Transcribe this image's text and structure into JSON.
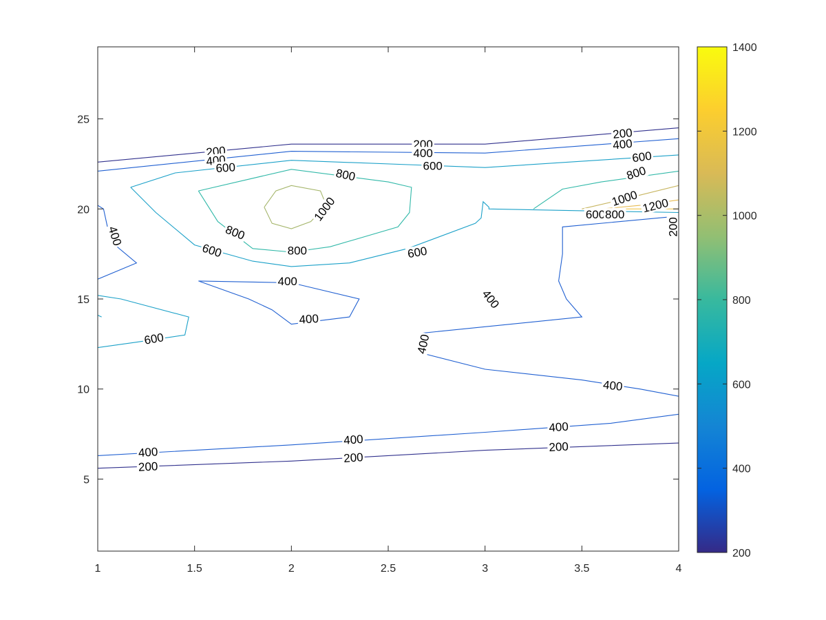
{
  "chart_data": {
    "type": "contour",
    "xlim": [
      1,
      4
    ],
    "ylim": [
      1,
      29
    ],
    "x_ticks": [
      "1",
      "1.5",
      "2",
      "2.5",
      "3",
      "3.5",
      "4"
    ],
    "y_ticks": [
      "5",
      "10",
      "15",
      "20",
      "25"
    ],
    "x_tick_values": [
      1,
      1.5,
      2,
      2.5,
      3,
      3.5,
      4
    ],
    "y_tick_values": [
      5,
      10,
      15,
      20,
      25
    ],
    "grid": false,
    "colorbar": {
      "placement": "right",
      "range": [
        200,
        1400
      ],
      "tick_values": [
        200,
        400,
        600,
        800,
        1000,
        1200,
        1400
      ],
      "tick_labels": [
        "200",
        "400",
        "600",
        "800",
        "1000",
        "1200",
        "1400"
      ],
      "colors": [
        "#352a87",
        "#0363e1",
        "#1485d4",
        "#06a7c6",
        "#38b99e",
        "#92bf73",
        "#d9ba56",
        "#fcce2e",
        "#f9fb0e"
      ]
    },
    "contours": [
      {
        "level": 200,
        "color": "#2f2f8c",
        "points": [
          [
            1,
            22.6
          ],
          [
            2,
            23.6
          ],
          [
            3,
            23.6
          ],
          [
            4,
            24.5
          ]
        ]
      },
      {
        "level": 400,
        "color": "#1f5fd1",
        "points": [
          [
            1,
            22.1
          ],
          [
            2,
            23.2
          ],
          [
            3,
            23.1
          ],
          [
            4,
            23.9
          ]
        ]
      },
      {
        "level": 600,
        "color": "#1aa0c8",
        "points": [
          [
            1.17,
            21.2
          ],
          [
            1.4,
            22.0
          ],
          [
            2,
            22.7
          ],
          [
            3,
            22.3
          ],
          [
            4,
            23.0
          ]
        ]
      },
      {
        "level": 600,
        "color": "#1aa0c8",
        "points": [
          [
            1.17,
            21.2
          ],
          [
            1.3,
            19.8
          ],
          [
            1.5,
            18.0
          ],
          [
            1.8,
            17.1
          ],
          [
            2,
            16.8
          ],
          [
            2.3,
            17.0
          ],
          [
            2.6,
            17.8
          ],
          [
            2.95,
            19.2
          ],
          [
            2.98,
            19.5
          ],
          [
            2.99,
            20.4
          ],
          [
            3.02,
            20.1
          ],
          [
            3.02,
            20.0
          ],
          [
            3.5,
            19.9
          ],
          [
            4,
            19.8
          ]
        ]
      },
      {
        "level": 800,
        "color": "#30b8a8",
        "points": [
          [
            1.52,
            21.0
          ],
          [
            2,
            22.2
          ],
          [
            2.5,
            21.5
          ],
          [
            2.62,
            21.2
          ],
          [
            2.61,
            19.8
          ],
          [
            2.55,
            19.0
          ],
          [
            2.2,
            17.9
          ],
          [
            2,
            17.6
          ],
          [
            1.8,
            17.8
          ],
          [
            1.62,
            19.3
          ],
          [
            1.52,
            21.0
          ]
        ]
      },
      {
        "level": 800,
        "color": "#30b8a8",
        "points": [
          [
            3.25,
            20.0
          ],
          [
            3.4,
            21.1
          ],
          [
            3.6,
            21.5
          ],
          [
            4,
            22.1
          ]
        ]
      },
      {
        "level": 1000,
        "color": "#a4b56a",
        "points": [
          [
            1.86,
            20.1
          ],
          [
            1.92,
            21.0
          ],
          [
            2,
            21.3
          ],
          [
            2.15,
            21.0
          ],
          [
            2.18,
            20.2
          ],
          [
            2.1,
            19.3
          ],
          [
            2,
            18.9
          ],
          [
            1.9,
            19.2
          ],
          [
            1.86,
            20.1
          ]
        ]
      },
      {
        "level": 1000,
        "color": "#c7b55f",
        "points": [
          [
            3.5,
            20.0
          ],
          [
            3.7,
            20.5
          ],
          [
            4,
            21.3
          ]
        ]
      },
      {
        "level": 1200,
        "color": "#e7ba4f",
        "points": [
          [
            3.6,
            20.0
          ],
          [
            3.8,
            20.2
          ],
          [
            4,
            20.5
          ]
        ]
      },
      {
        "level": 1200,
        "color": "#f1c64a",
        "points": [
          [
            3.7,
            20.0
          ],
          [
            4,
            20.0
          ]
        ]
      },
      {
        "level": 200,
        "color": "#2f2f8c",
        "points": [
          [
            3.96,
            19.3
          ],
          [
            3.97,
            18.8
          ],
          [
            4,
            18.5
          ]
        ]
      },
      {
        "level": 400,
        "color": "#1f5fd1",
        "points": [
          [
            4,
            19.6
          ],
          [
            3.4,
            19.0
          ],
          [
            3.4,
            17.5
          ],
          [
            3.38,
            16.0
          ],
          [
            3.42,
            15.0
          ],
          [
            3.5,
            14.0
          ],
          [
            2.67,
            13.1
          ]
        ]
      },
      {
        "level": 400,
        "color": "#1f5fd1",
        "points": [
          [
            2.67,
            12.0
          ],
          [
            3,
            11.1
          ],
          [
            3.5,
            10.5
          ],
          [
            3.8,
            10.0
          ],
          [
            4,
            9.6
          ]
        ]
      },
      {
        "level": 400,
        "color": "#1f5fd1",
        "points": [
          [
            1,
            20.2
          ],
          [
            1.03,
            20.0
          ],
          [
            1.05,
            19.0
          ],
          [
            1.1,
            17.9
          ],
          [
            1.2,
            17.0
          ],
          [
            1,
            16.1
          ]
        ]
      },
      {
        "level": 400,
        "color": "#1f5fd1",
        "points": [
          [
            1.52,
            16.0
          ],
          [
            2,
            15.9
          ],
          [
            2.35,
            15.0
          ],
          [
            2.3,
            14.0
          ],
          [
            2,
            13.6
          ],
          [
            1.9,
            14.4
          ],
          [
            1.78,
            15.0
          ],
          [
            1.52,
            16.0
          ]
        ]
      },
      {
        "level": 600,
        "color": "#1aa0c8",
        "points": [
          [
            1,
            15.2
          ],
          [
            1.12,
            15.0
          ],
          [
            1.47,
            14.0
          ],
          [
            1.45,
            13.0
          ],
          [
            1.2,
            12.6
          ],
          [
            1,
            12.3
          ]
        ]
      },
      {
        "level": 600,
        "color": "#1aa0c8",
        "points": [
          [
            1,
            14.1
          ],
          [
            1.02,
            14.0
          ]
        ]
      },
      {
        "level": 400,
        "color": "#1f5fd1",
        "points": [
          [
            1,
            6.3
          ],
          [
            2,
            6.9
          ],
          [
            3,
            7.6
          ],
          [
            3.65,
            8.1
          ],
          [
            4,
            8.6
          ]
        ]
      },
      {
        "level": 200,
        "color": "#2f2f8c",
        "points": [
          [
            1,
            5.6
          ],
          [
            2,
            6.0
          ],
          [
            3,
            6.6
          ],
          [
            4,
            7.0
          ]
        ]
      }
    ],
    "contour_labels": [
      {
        "text": "200",
        "x": 1.61,
        "y": 23.2,
        "angle": -6
      },
      {
        "text": "400",
        "x": 1.61,
        "y": 22.7,
        "angle": -6
      },
      {
        "text": "600",
        "x": 1.66,
        "y": 22.3,
        "angle": -4
      },
      {
        "text": "800",
        "x": 2.28,
        "y": 21.9,
        "angle": 12
      },
      {
        "text": "1000",
        "x": 2.17,
        "y": 20.0,
        "angle": -53
      },
      {
        "text": "800",
        "x": 1.71,
        "y": 18.7,
        "angle": 22
      },
      {
        "text": "800",
        "x": 2.03,
        "y": 17.7,
        "angle": 0
      },
      {
        "text": "600",
        "x": 1.59,
        "y": 17.7,
        "angle": 18
      },
      {
        "text": "600",
        "x": 2.65,
        "y": 17.6,
        "angle": -10
      },
      {
        "text": "200",
        "x": 2.68,
        "y": 23.6,
        "angle": 0
      },
      {
        "text": "400",
        "x": 2.68,
        "y": 23.1,
        "angle": 0
      },
      {
        "text": "600",
        "x": 2.73,
        "y": 22.4,
        "angle": 0
      },
      {
        "text": "200",
        "x": 3.71,
        "y": 24.2,
        "angle": -6
      },
      {
        "text": "400",
        "x": 3.71,
        "y": 23.6,
        "angle": -6
      },
      {
        "text": "600",
        "x": 3.81,
        "y": 22.9,
        "angle": -8
      },
      {
        "text": "800",
        "x": 3.78,
        "y": 22.0,
        "angle": -18
      },
      {
        "text": "1000",
        "x": 3.72,
        "y": 20.6,
        "angle": -18
      },
      {
        "text": "1200",
        "x": 3.88,
        "y": 20.2,
        "angle": -14
      },
      {
        "text": "600",
        "x": 3.57,
        "y": 19.7,
        "angle": 0
      },
      {
        "text": "800",
        "x": 3.67,
        "y": 19.7,
        "angle": 0
      },
      {
        "text": "200",
        "x": 3.97,
        "y": 19.0,
        "angle": -90
      },
      {
        "text": "400",
        "x": 1.09,
        "y": 18.5,
        "angle": 73
      },
      {
        "text": "400",
        "x": 1.98,
        "y": 16.0,
        "angle": 0
      },
      {
        "text": "400",
        "x": 2.09,
        "y": 13.9,
        "angle": -4
      },
      {
        "text": "600",
        "x": 1.29,
        "y": 12.8,
        "angle": -10
      },
      {
        "text": "400",
        "x": 3.03,
        "y": 15.0,
        "angle": 52
      },
      {
        "text": "400",
        "x": 2.68,
        "y": 12.5,
        "angle": -78
      },
      {
        "text": "400",
        "x": 3.66,
        "y": 10.2,
        "angle": 6
      },
      {
        "text": "400",
        "x": 1.26,
        "y": 6.5,
        "angle": -4
      },
      {
        "text": "200",
        "x": 1.26,
        "y": 5.7,
        "angle": -3
      },
      {
        "text": "400",
        "x": 2.32,
        "y": 7.2,
        "angle": -4
      },
      {
        "text": "200",
        "x": 2.32,
        "y": 6.2,
        "angle": -4
      },
      {
        "text": "400",
        "x": 3.38,
        "y": 7.9,
        "angle": -4
      },
      {
        "text": "200",
        "x": 3.38,
        "y": 6.8,
        "angle": -3
      }
    ]
  }
}
